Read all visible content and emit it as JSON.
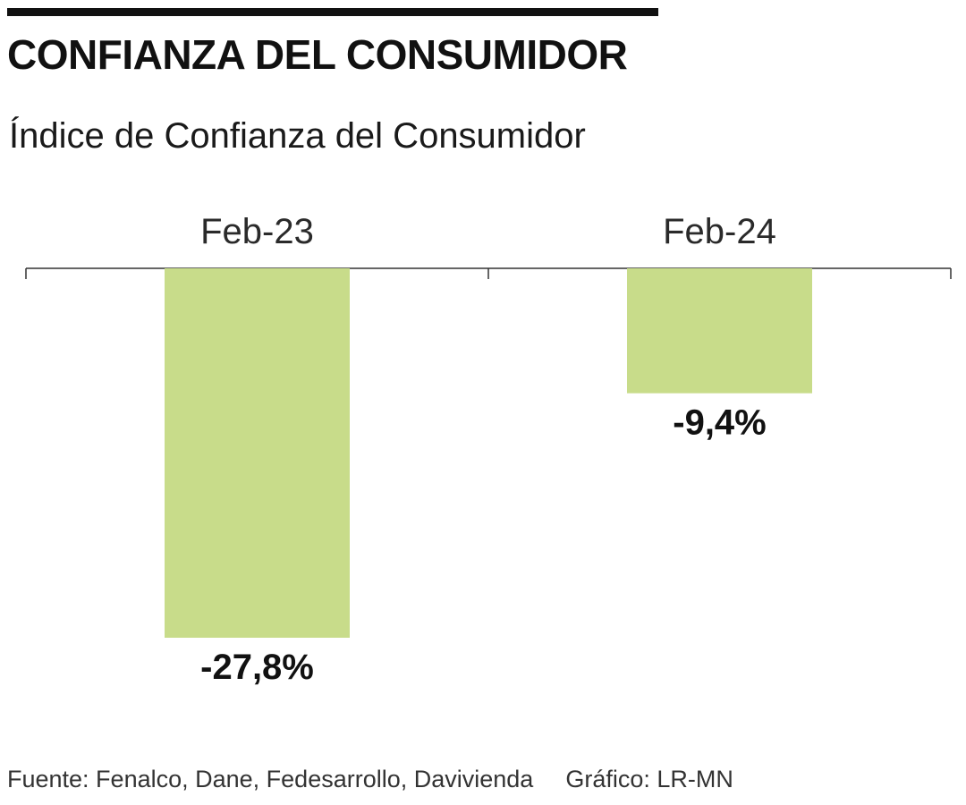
{
  "header": {
    "title": "CONFIANZA DEL CONSUMIDOR",
    "subtitle": "Índice de Confianza del Consumidor"
  },
  "chart_data": {
    "type": "bar",
    "categories": [
      "Feb-23",
      "Feb-24"
    ],
    "values": [
      -27.8,
      -9.4
    ],
    "value_labels": [
      "-27,8%",
      "-9,4%"
    ],
    "title": "CONFIANZA DEL CONSUMIDOR",
    "subtitle": "Índice de Confianza del Consumidor",
    "xlabel": "",
    "ylabel": "",
    "ylim": [
      -27.8,
      0
    ],
    "grid": false,
    "legend": "none",
    "category_axis_position": "top",
    "bar_color": "#c8dc8a"
  },
  "footer": {
    "source": "Fuente: Fenalco, Dane, Fedesarrollo, Davivienda",
    "credit": "Gráfico: LR-MN"
  }
}
